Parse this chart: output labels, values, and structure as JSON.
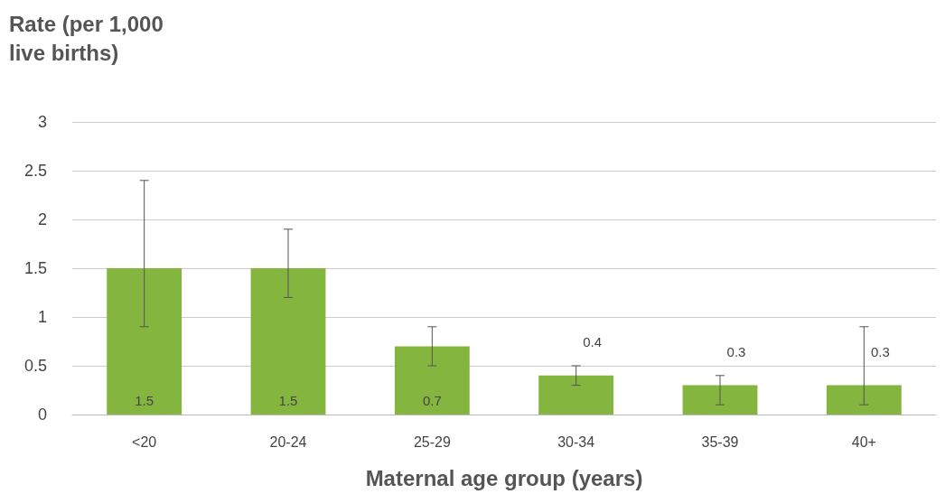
{
  "chart_data": {
    "type": "bar",
    "ylabel": "Rate (per 1,000 live births)",
    "xlabel": "Maternal age group (years)",
    "categories": [
      "<20",
      "20-24",
      "25-29",
      "30-34",
      "35-39",
      "40+"
    ],
    "values": [
      1.5,
      1.5,
      0.7,
      0.4,
      0.3,
      0.3
    ],
    "errors": [
      [
        0.9,
        2.4
      ],
      [
        1.2,
        1.9
      ],
      [
        0.5,
        0.9
      ],
      [
        0.3,
        0.5
      ],
      [
        0.1,
        0.4
      ],
      [
        0.1,
        0.9
      ]
    ],
    "color": "#84b53f",
    "ylim": [
      0,
      3
    ],
    "yticks": [
      0,
      0.5,
      1,
      1.5,
      2,
      2.5,
      3
    ],
    "grid": "y",
    "data_labels": true
  }
}
